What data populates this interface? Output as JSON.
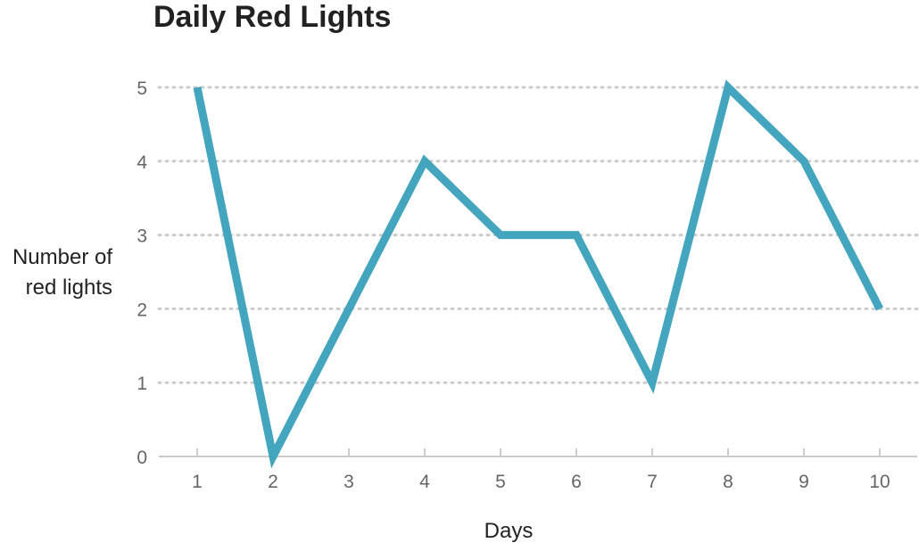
{
  "chart_data": {
    "type": "line",
    "title": "Daily Red Lights",
    "xlabel": "Days",
    "ylabel": "Number of\nred lights",
    "x": [
      1,
      2,
      3,
      4,
      5,
      6,
      7,
      8,
      9,
      10
    ],
    "series": [
      {
        "values": [
          5,
          0,
          2,
          4,
          3,
          3,
          1,
          5,
          4,
          2
        ]
      }
    ],
    "ylim": [
      0,
      5
    ],
    "yticks": [
      0,
      1,
      2,
      3,
      4,
      5
    ],
    "xticks": [
      "1",
      "2",
      "3",
      "4",
      "5",
      "6",
      "7",
      "8",
      "9",
      "10"
    ],
    "grid": "horizontal-dotted",
    "line_color": "#43a5be",
    "grid_color": "#cccccc",
    "axis_color": "#bbbbbb"
  }
}
